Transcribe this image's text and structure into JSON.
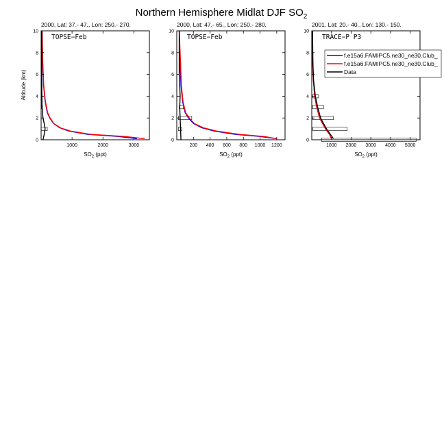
{
  "figure": {
    "title": "Northern Hemisphere Midlat DJF SO",
    "title_subscript": "2",
    "ylabel": "Altitude (km)",
    "xlabel_main": "SO",
    "xlabel_subscript": "2",
    "xlabel_suffix": " (ppt)"
  },
  "legend": {
    "placement": "top-right of third panel",
    "entries": [
      {
        "label": "f.e15a6.FAMIPC5.ne30_ne30.Club_",
        "color": "#0000ff"
      },
      {
        "label": "f.e15a6.FAMIPC5.ne30_ne30.Club_",
        "color": "#ff0000"
      },
      {
        "label": "Data",
        "color": "#000000"
      }
    ]
  },
  "chart_data": [
    {
      "type": "line",
      "header": "2000, Lat: 37.- 47., Lon: 250.- 270.",
      "campaign": "TOPSE−Feb",
      "xlim": [
        0,
        3500
      ],
      "ylim": [
        0,
        10
      ],
      "xticks": [
        1000,
        2000,
        3000
      ],
      "yticks": [
        0,
        2,
        4,
        6,
        8,
        10
      ],
      "series": [
        {
          "color": "#0000ff",
          "x": [
            3100,
            2500,
            1500,
            900,
            600,
            400,
            280,
            200,
            130,
            80,
            50,
            30
          ],
          "y": [
            0.1,
            0.3,
            0.5,
            0.8,
            1.1,
            1.5,
            2,
            2.5,
            3.5,
            5,
            7,
            10
          ]
        },
        {
          "color": "#ff0000",
          "x": [
            3350,
            2700,
            1600,
            950,
            620,
            410,
            290,
            210,
            140,
            85,
            55,
            30
          ],
          "y": [
            0.1,
            0.3,
            0.5,
            0.8,
            1.1,
            1.5,
            2,
            2.5,
            3.5,
            5,
            7,
            10
          ]
        },
        {
          "color": "#000000",
          "x": [
            60,
            100,
            130,
            100,
            60,
            30,
            20,
            20
          ],
          "y": [
            0,
            0.5,
            1,
            1.5,
            2,
            3,
            5,
            10
          ]
        }
      ],
      "boxes": [
        {
          "y": 1,
          "x_low": 0,
          "x_high": 200
        },
        {
          "y": 3,
          "x_low": 15,
          "x_high": 40
        },
        {
          "y": 5,
          "x_low": 10,
          "x_high": 30
        }
      ]
    },
    {
      "type": "line",
      "header": "2000, Lat: 47.- 65., Lon: 250.- 280.",
      "campaign": "TOPSE−Feb",
      "xlim": [
        0,
        1300
      ],
      "ylim": [
        0,
        10
      ],
      "xticks": [
        200,
        400,
        600,
        800,
        1000,
        1200
      ],
      "yticks": [
        0,
        2,
        4,
        6,
        8,
        10
      ],
      "series": [
        {
          "color": "#0000ff",
          "x": [
            1200,
            1000,
            700,
            450,
            300,
            200,
            140,
            100,
            70,
            50,
            40,
            30
          ],
          "y": [
            0.1,
            0.3,
            0.5,
            0.8,
            1.1,
            1.5,
            2,
            2.5,
            3.5,
            5,
            7,
            10
          ]
        },
        {
          "color": "#ff0000",
          "x": [
            1200,
            1050,
            750,
            480,
            320,
            210,
            150,
            105,
            75,
            55,
            45,
            30
          ],
          "y": [
            0.1,
            0.3,
            0.5,
            0.8,
            1.1,
            1.5,
            2,
            2.5,
            3.5,
            5,
            7,
            10
          ]
        },
        {
          "color": "#000000",
          "x": [
            50,
            45,
            40,
            35,
            40,
            35,
            30,
            30
          ],
          "y": [
            0,
            1,
            2,
            3,
            4,
            5,
            6,
            10
          ]
        }
      ],
      "boxes": [
        {
          "y": 2,
          "x_low": 20,
          "x_high": 180
        },
        {
          "y": 3,
          "x_low": 30,
          "x_high": 80
        },
        {
          "y": 1,
          "x_low": 20,
          "x_high": 60
        }
      ]
    },
    {
      "type": "line",
      "header": "2001, Lat: 20.- 40., Lon: 130.- 150.",
      "campaign": "TRACE−P P3",
      "xlim": [
        0,
        5500
      ],
      "ylim": [
        0,
        10
      ],
      "xticks": [
        1000,
        2000,
        3000,
        4000,
        5000
      ],
      "yticks": [
        0,
        2,
        4,
        6,
        8,
        10
      ],
      "series": [
        {
          "color": "#0000ff",
          "x": [
            1000,
            900,
            700,
            550,
            400,
            250,
            150,
            80,
            50,
            30
          ],
          "y": [
            0.1,
            0.5,
            1,
            1.5,
            2,
            3,
            4,
            5.5,
            7,
            10
          ]
        },
        {
          "color": "#ff0000",
          "x": [
            1000,
            900,
            700,
            550,
            400,
            250,
            150,
            80,
            50,
            30
          ],
          "y": [
            0.1,
            0.5,
            1,
            1.5,
            2,
            3,
            4,
            5.5,
            7,
            10
          ]
        },
        {
          "color": "#000000",
          "x": [
            1100,
            950,
            750,
            600,
            450,
            300,
            180,
            90,
            60,
            40
          ],
          "y": [
            0.1,
            0.5,
            1,
            1.5,
            2,
            3,
            4,
            5.5,
            7,
            10
          ]
        }
      ],
      "boxes": [
        {
          "y": 0,
          "x_low": 500,
          "x_high": 5300
        },
        {
          "y": 1,
          "x_low": 50,
          "x_high": 1800
        },
        {
          "y": 2,
          "x_low": 50,
          "x_high": 1100
        },
        {
          "y": 3,
          "x_low": 50,
          "x_high": 600
        },
        {
          "y": 4,
          "x_low": 50,
          "x_high": 350
        }
      ]
    }
  ]
}
